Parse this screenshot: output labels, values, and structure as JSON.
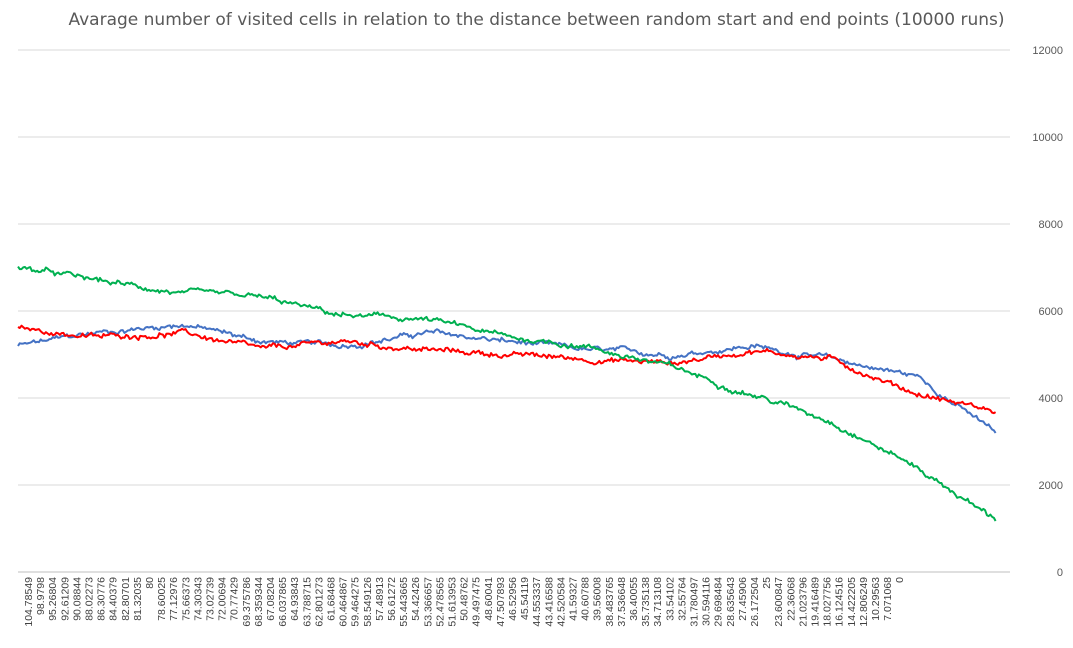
{
  "chart_data": {
    "type": "line",
    "title": "Avarage number of visited cells in relation to the distance between random start and end points (10000 runs)",
    "xlabel": "",
    "ylabel": "",
    "ylim": [
      0,
      12000
    ],
    "y_ticks": [
      0,
      2000,
      4000,
      6000,
      8000,
      10000,
      12000
    ],
    "y_axis_side": "right",
    "grid": "horizontal",
    "legend": "none",
    "x_tick_labels": [
      "104.78549",
      "98.9798",
      "95.26804",
      "92.61209",
      "90.08844",
      "88.02273",
      "86.30776",
      "84.40379",
      "82.80701",
      "81.32035",
      "80",
      "78.60025",
      "77.12976",
      "75.66373",
      "74.30343",
      "73.02739",
      "72.00694",
      "70.77429",
      "69.375786",
      "68.359344",
      "67.08204",
      "66.037865",
      "64.93843",
      "63.788715",
      "62.801273",
      "61.68468",
      "60.464867",
      "59.464275",
      "58.549126",
      "57.48913",
      "56.61272",
      "55.443665",
      "54.42426",
      "53.366657",
      "52.478565",
      "51.613953",
      "50.48762",
      "49.497475",
      "48.60041",
      "47.507893",
      "46.52956",
      "45.54119",
      "44.553337",
      "43.416588",
      "42.520584",
      "41.59327",
      "40.60788",
      "39.56008",
      "38.483765",
      "37.536648",
      "36.40055",
      "35.735138",
      "34.713108",
      "33.54102",
      "32.55764",
      "31.780497",
      "30.594116",
      "29.698484",
      "28.635643",
      "27.45906",
      "26.172504",
      "25",
      "23.600847",
      "22.36068",
      "21.023796",
      "19.416489",
      "18.027756",
      "16.124516",
      "14.422205",
      "12.806249",
      "10.29563",
      "7.071068",
      "0"
    ],
    "x": [
      0,
      0.08,
      0.17,
      0.25,
      0.33,
      0.42,
      0.5,
      0.58,
      0.67,
      0.75,
      0.83,
      0.92,
      1
    ],
    "series": [
      {
        "color": "#4472C4",
        "values": [
          5200,
          5500,
          5700,
          5300,
          5200,
          5500,
          5300,
          5100,
          5000,
          5200,
          4900,
          4500,
          3200
        ]
      },
      {
        "color": "#FF0000",
        "values": [
          5600,
          5400,
          5500,
          5100,
          5300,
          5100,
          5000,
          4900,
          4800,
          5100,
          4900,
          4100,
          3700
        ]
      },
      {
        "color": "#00B050",
        "values": [
          7000,
          6700,
          6400,
          6300,
          5900,
          5800,
          5400,
          5200,
          4700,
          4100,
          3500,
          2400,
          1200
        ]
      }
    ]
  }
}
